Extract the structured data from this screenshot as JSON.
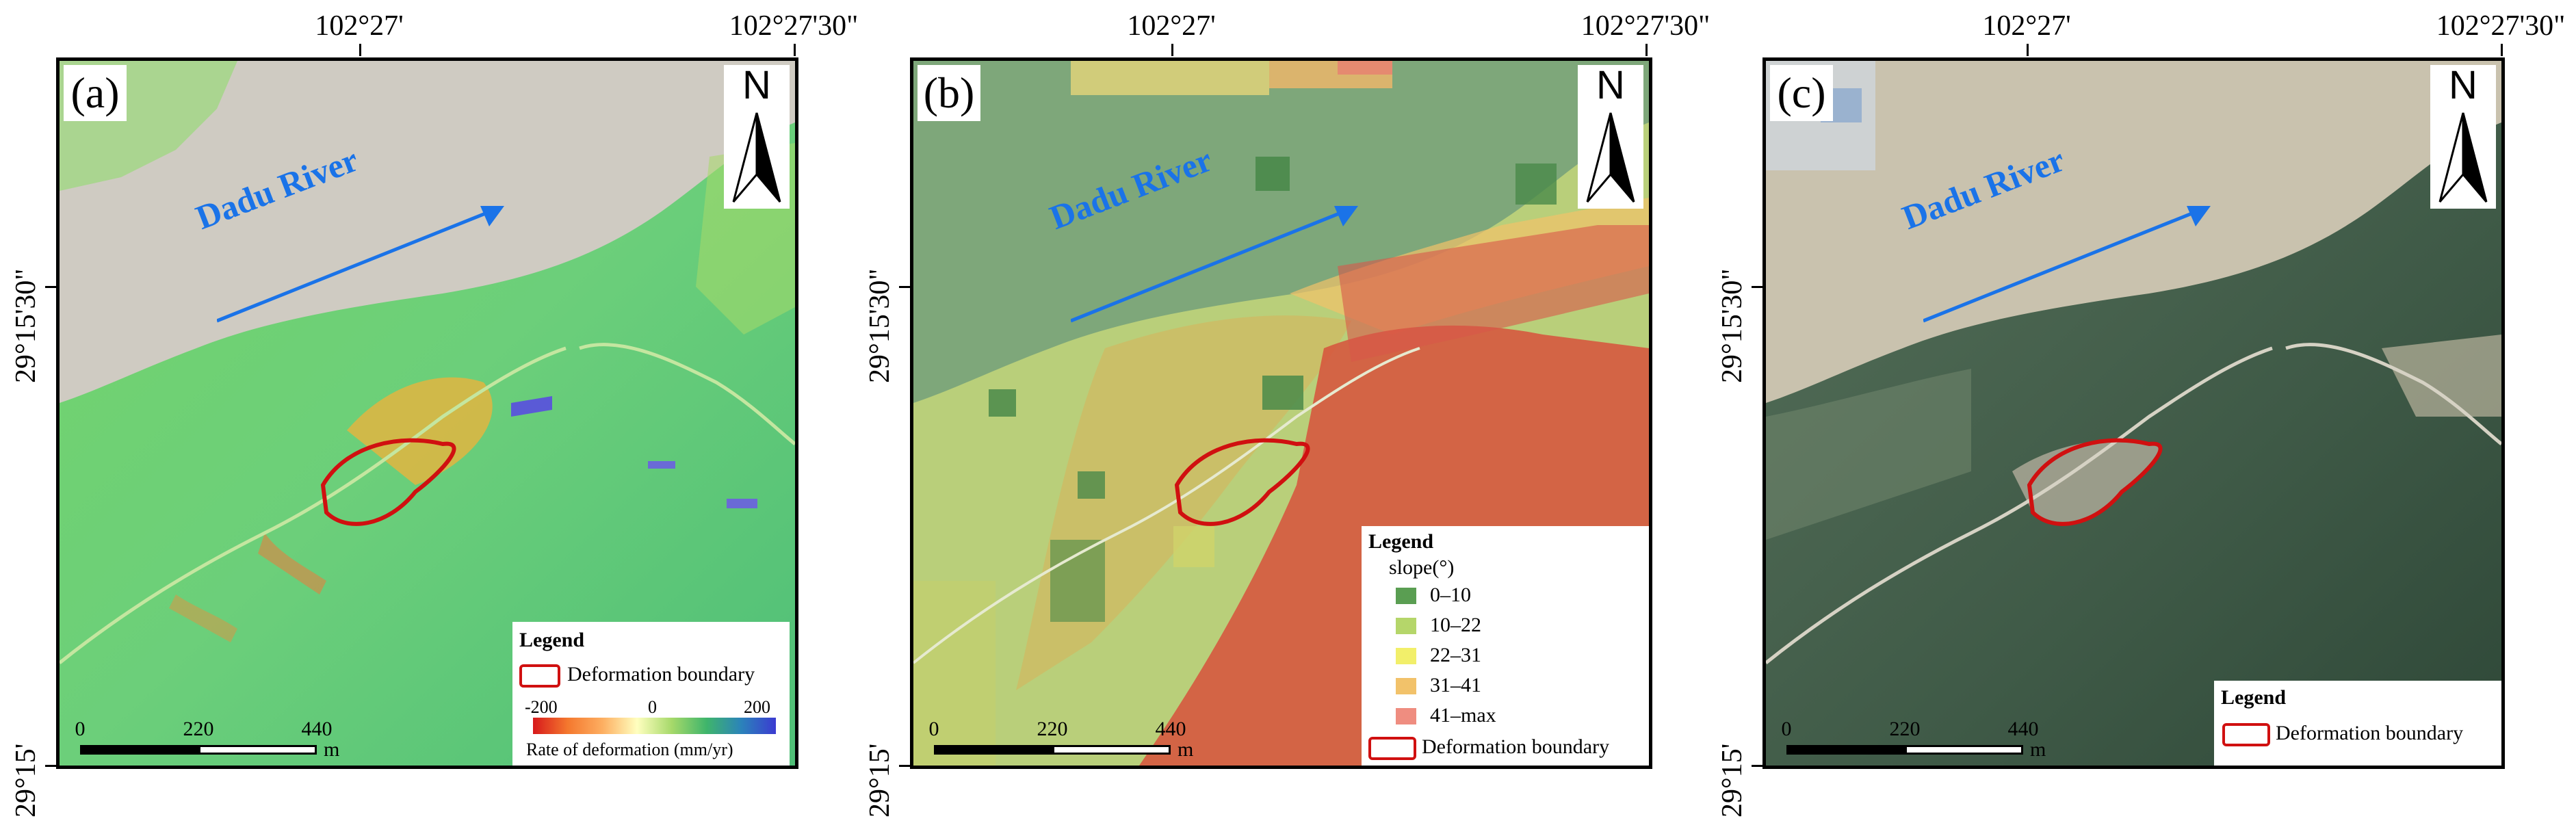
{
  "panels": [
    {
      "label": "(a)",
      "top_lon_labels": [
        "102°27'",
        "102°27'30\""
      ],
      "side_lat_labels": [
        "29°15'30\"",
        "29°15'"
      ],
      "north_label": "N",
      "river_label": "Dadu River",
      "scale": {
        "ticks": [
          "0",
          "220",
          "440"
        ],
        "unit": "m"
      },
      "legend": {
        "title": "Legend",
        "boundary_label": "Deformation boundary",
        "ramp_ticks": [
          "-200",
          "0",
          "200"
        ],
        "ramp_caption": "Rate of deformation (mm/yr)"
      }
    },
    {
      "label": "(b)",
      "top_lon_labels": [
        "102°27'",
        "102°27'30\""
      ],
      "side_lat_labels": [
        "29°15'30\"",
        "29°15'"
      ],
      "north_label": "N",
      "river_label": "Dadu River",
      "scale": {
        "ticks": [
          "0",
          "220",
          "440"
        ],
        "unit": "m"
      },
      "legend": {
        "title": "Legend",
        "slope_title": "slope(°)",
        "classes": [
          {
            "label": "0–10",
            "color": "#5a9e52"
          },
          {
            "label": "10–22",
            "color": "#b5d66a"
          },
          {
            "label": "22–31",
            "color": "#f2ef6a"
          },
          {
            "label": "31–41",
            "color": "#f2c26a"
          },
          {
            "label": "41–max",
            "color": "#ef8d80"
          }
        ],
        "boundary_label": "Deformation boundary"
      }
    },
    {
      "label": "(c)",
      "top_lon_labels": [
        "102°27'",
        "102°27'30\""
      ],
      "side_lat_labels": [
        "29°15'30\"",
        "29°15'"
      ],
      "north_label": "N",
      "river_label": "Dadu River",
      "scale": {
        "ticks": [
          "0",
          "220",
          "440"
        ],
        "unit": "m"
      },
      "legend": {
        "title": "Legend",
        "boundary_label": "Deformation boundary"
      }
    }
  ],
  "colors": {
    "river_text": "#1a73e8",
    "boundary": "#d01010",
    "ramp": [
      "#d7191c",
      "#fdae61",
      "#ffffbf",
      "#a6d96a",
      "#1a9641",
      "#2b83ba",
      "#3b3bd1"
    ]
  }
}
